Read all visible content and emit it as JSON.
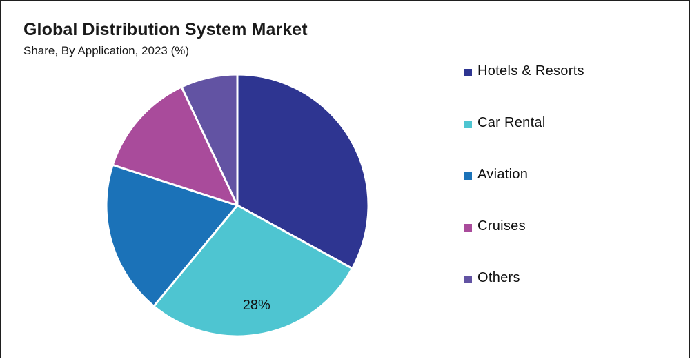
{
  "chart_data": {
    "type": "pie",
    "title": "Global Distribution System Market",
    "subtitle": "Share, By Application, 2023 (%)",
    "legend_position": "right",
    "slices": [
      {
        "label": "Hotels & Resorts",
        "value": 33,
        "color": "#2E3591"
      },
      {
        "label": "Car Rental",
        "value": 28,
        "color": "#4EC5D1",
        "data_label": "28%"
      },
      {
        "label": "Aviation",
        "value": 19,
        "color": "#1B72B8"
      },
      {
        "label": "Cruises",
        "value": 13,
        "color": "#A94B9B"
      },
      {
        "label": "Others",
        "value": 7,
        "color": "#6253A3"
      }
    ]
  }
}
